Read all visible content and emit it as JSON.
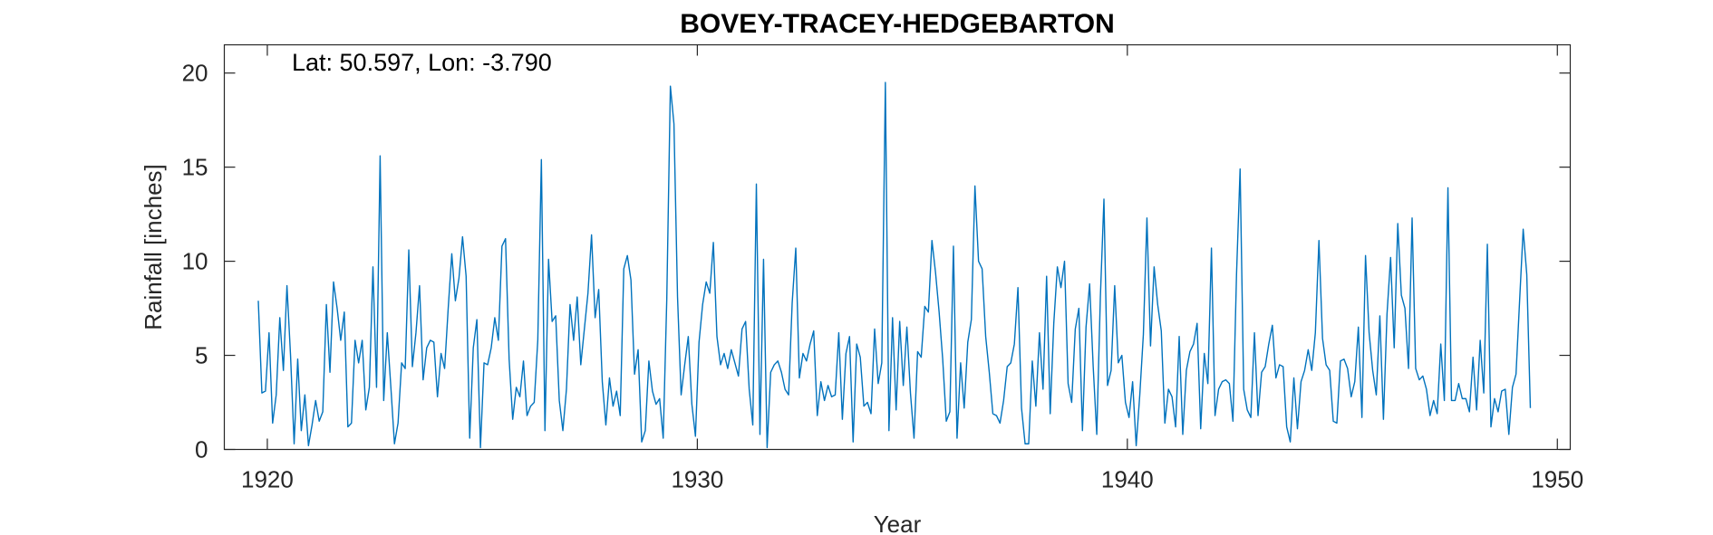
{
  "chart_data": {
    "type": "line",
    "title": "BOVEY-TRACEY-HEDGEBARTON",
    "xlabel": "Year",
    "ylabel": "Rainfall [inches]",
    "annotation": "Lat: 50.597, Lon: -3.790",
    "xlim": [
      1919,
      1950.3
    ],
    "ylim": [
      0,
      21.5
    ],
    "x_ticks": [
      1920,
      1930,
      1940,
      1950
    ],
    "y_ticks": [
      0,
      5,
      10,
      15,
      20
    ],
    "grid": false,
    "legend": "none",
    "series_color": "#0072BD",
    "series": [
      {
        "x_start": 1919.79,
        "x_step": 0.08333,
        "values": [
          7.9,
          3.0,
          3.1,
          6.2,
          1.4,
          2.9,
          7.0,
          4.2,
          8.7,
          5.0,
          0.3,
          4.8,
          1.0,
          2.9,
          0.2,
          1.3,
          2.6,
          1.5,
          2.0,
          7.7,
          4.1,
          8.9,
          7.5,
          5.8,
          7.3,
          1.2,
          1.4,
          5.8,
          4.6,
          5.8,
          2.1,
          3.3,
          9.7,
          3.3,
          15.6,
          2.6,
          6.2,
          3.3,
          0.3,
          1.4,
          4.6,
          4.3,
          10.6,
          4.4,
          6.2,
          8.7,
          3.7,
          5.4,
          5.8,
          5.7,
          2.8,
          5.1,
          4.3,
          7.5,
          10.4,
          7.9,
          9.1,
          11.3,
          9.2,
          0.6,
          5.4,
          6.9,
          0.1,
          4.6,
          4.5,
          5.4,
          7.0,
          5.8,
          10.8,
          11.2,
          4.8,
          1.6,
          3.3,
          2.8,
          4.7,
          1.8,
          2.3,
          2.5,
          5.8,
          15.4,
          1.0,
          10.1,
          6.8,
          7.1,
          2.6,
          1.0,
          3.2,
          7.7,
          5.8,
          8.1,
          4.5,
          6.4,
          8.3,
          11.4,
          7.0,
          8.5,
          3.6,
          1.3,
          3.8,
          2.3,
          3.1,
          1.8,
          9.6,
          10.3,
          9.0,
          4.0,
          5.3,
          0.4,
          1.0,
          4.7,
          3.1,
          2.4,
          2.7,
          0.6,
          8.0,
          19.3,
          17.3,
          8.1,
          2.9,
          4.5,
          6.0,
          2.4,
          0.7,
          5.7,
          7.7,
          8.9,
          8.3,
          11.0,
          6.0,
          4.5,
          5.1,
          4.3,
          5.3,
          4.6,
          3.9,
          6.4,
          6.8,
          3.2,
          1.3,
          14.1,
          0.8,
          10.1,
          0.1,
          4.1,
          4.5,
          4.7,
          4.1,
          3.2,
          2.9,
          7.8,
          10.7,
          3.8,
          5.1,
          4.7,
          5.6,
          6.3,
          1.8,
          3.6,
          2.6,
          3.4,
          2.8,
          2.9,
          6.2,
          1.6,
          5.1,
          6.0,
          0.4,
          5.6,
          4.9,
          2.3,
          2.5,
          1.9,
          6.4,
          3.5,
          4.6,
          19.5,
          1.0,
          7.0,
          2.1,
          6.8,
          3.4,
          6.5,
          3.0,
          0.6,
          5.2,
          4.9,
          7.6,
          7.3,
          11.1,
          9.4,
          7.3,
          4.8,
          1.5,
          2.0,
          10.8,
          0.6,
          4.6,
          2.2,
          5.7,
          6.9,
          14.0,
          10.0,
          9.6,
          6.0,
          4.1,
          1.9,
          1.8,
          1.4,
          2.6,
          4.4,
          4.6,
          5.6,
          8.6,
          2.2,
          0.3,
          0.3,
          4.7,
          2.3,
          6.2,
          3.2,
          9.2,
          1.9,
          6.7,
          9.7,
          8.6,
          10.0,
          3.5,
          2.5,
          6.4,
          7.5,
          1.0,
          6.5,
          8.8,
          4.4,
          0.8,
          8.1,
          13.3,
          3.4,
          4.2,
          8.7,
          4.6,
          5.0,
          2.5,
          1.7,
          3.6,
          0.2,
          2.9,
          6.1,
          12.3,
          5.5,
          9.7,
          7.7,
          6.3,
          1.4,
          3.2,
          2.8,
          1.2,
          6.0,
          0.8,
          4.2,
          5.2,
          5.6,
          6.7,
          1.1,
          5.1,
          3.5,
          10.7,
          1.8,
          3.2,
          3.6,
          3.7,
          3.5,
          1.5,
          9.3,
          14.9,
          3.2,
          2.1,
          1.7,
          6.2,
          1.8,
          4.1,
          4.4,
          5.6,
          6.6,
          3.8,
          4.5,
          4.4,
          1.2,
          0.4,
          3.8,
          1.1,
          3.6,
          4.2,
          5.3,
          4.2,
          6.2,
          11.1,
          5.9,
          4.5,
          4.2,
          1.5,
          1.4,
          4.7,
          4.8,
          4.3,
          2.8,
          3.6,
          6.5,
          1.7,
          10.3,
          6.2,
          4.2,
          2.9,
          7.1,
          1.6,
          7.2,
          10.2,
          5.4,
          12.0,
          8.2,
          7.5,
          4.3,
          12.3,
          4.3,
          3.7,
          3.9,
          3.2,
          1.8,
          2.6,
          1.9,
          5.6,
          2.6,
          13.9,
          2.6,
          2.6,
          3.5,
          2.7,
          2.7,
          2.0,
          4.9,
          2.1,
          5.8,
          3.0,
          10.9,
          1.2,
          2.7,
          2.0,
          3.1,
          3.2,
          0.8,
          3.3,
          4.0,
          7.9,
          11.7,
          9.3,
          2.2
        ]
      }
    ]
  }
}
